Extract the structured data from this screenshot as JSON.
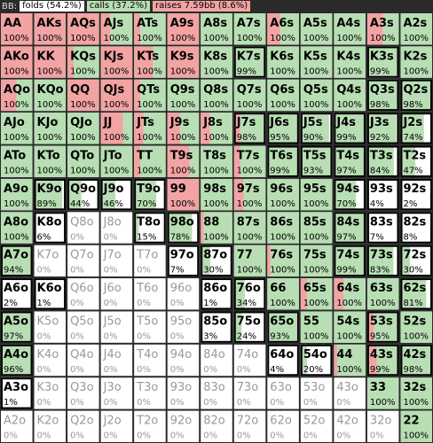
{
  "header": {
    "player": "BB:",
    "legend": [
      "folds (54.2%)",
      "calls (37.2%)",
      "raises 7.59bb (8.6%)"
    ]
  },
  "cells": [
    [
      [
        "AA",
        "100%",
        100,
        0
      ],
      [
        "AKs",
        "100%",
        100,
        0
      ],
      [
        "AQs",
        "100%",
        100,
        0
      ],
      [
        "AJs",
        "100%",
        30,
        70
      ],
      [
        "ATs",
        "100%",
        20,
        80
      ],
      [
        "A9s",
        "100%",
        100,
        0
      ],
      [
        "A8s",
        "100%",
        0,
        100
      ],
      [
        "A7s",
        "100%",
        0,
        100
      ],
      [
        "A6s",
        "100%",
        40,
        60
      ],
      [
        "A5s",
        "100%",
        0,
        100
      ],
      [
        "A4s",
        "100%",
        0,
        100
      ],
      [
        "A3s",
        "100%",
        50,
        50
      ],
      [
        "A2s",
        "100%",
        0,
        100
      ]
    ],
    [
      [
        "AKo",
        "100%",
        100,
        0
      ],
      [
        "KK",
        "100%",
        100,
        0
      ],
      [
        "KQs",
        "100%",
        20,
        80
      ],
      [
        "KJs",
        "100%",
        100,
        0
      ],
      [
        "KTs",
        "100%",
        60,
        40
      ],
      [
        "K9s",
        "100%",
        100,
        0
      ],
      [
        "K8s",
        "100%",
        0,
        100
      ],
      [
        "K7s",
        "99%",
        0,
        99
      ],
      [
        "K6s",
        "100%",
        0,
        100
      ],
      [
        "K5s",
        "100%",
        0,
        100
      ],
      [
        "K4s",
        "100%",
        0,
        100
      ],
      [
        "K3s",
        "99%",
        0,
        99
      ],
      [
        "K2s",
        "100%",
        0,
        100
      ]
    ],
    [
      [
        "AQo",
        "100%",
        50,
        50
      ],
      [
        "KQo",
        "100%",
        0,
        100
      ],
      [
        "QQ",
        "100%",
        100,
        0
      ],
      [
        "QJs",
        "100%",
        100,
        0
      ],
      [
        "QTs",
        "100%",
        20,
        80
      ],
      [
        "Q9s",
        "100%",
        0,
        100
      ],
      [
        "Q8s",
        "100%",
        0,
        100
      ],
      [
        "Q7s",
        "100%",
        0,
        100
      ],
      [
        "Q6s",
        "100%",
        0,
        100
      ],
      [
        "Q5s",
        "100%",
        0,
        100
      ],
      [
        "Q4s",
        "100%",
        0,
        100
      ],
      [
        "Q3s",
        "98%",
        0,
        98
      ],
      [
        "Q2s",
        "98%",
        0,
        98
      ]
    ],
    [
      [
        "AJo",
        "100%",
        0,
        100
      ],
      [
        "KJo",
        "100%",
        0,
        100
      ],
      [
        "QJo",
        "100%",
        0,
        100
      ],
      [
        "JJ",
        "100%",
        70,
        30
      ],
      [
        "JTs",
        "100%",
        30,
        70
      ],
      [
        "J9s",
        "100%",
        40,
        60
      ],
      [
        "J8s",
        "100%",
        30,
        70
      ],
      [
        "J7s",
        "98%",
        20,
        78
      ],
      [
        "J6s",
        "95%",
        0,
        95
      ],
      [
        "J5s",
        "90%",
        0,
        90
      ],
      [
        "J4s",
        "99%",
        0,
        99
      ],
      [
        "J3s",
        "92%",
        0,
        92
      ],
      [
        "J2s",
        "74%",
        0,
        74
      ]
    ],
    [
      [
        "ATo",
        "100%",
        0,
        100
      ],
      [
        "KTo",
        "100%",
        0,
        100
      ],
      [
        "QTo",
        "100%",
        0,
        100
      ],
      [
        "JTo",
        "100%",
        0,
        100
      ],
      [
        "TT",
        "100%",
        20,
        80
      ],
      [
        "T9s",
        "100%",
        70,
        30
      ],
      [
        "T8s",
        "100%",
        0,
        100
      ],
      [
        "T7s",
        "100%",
        20,
        80
      ],
      [
        "T6s",
        "99%",
        0,
        99
      ],
      [
        "T5s",
        "93%",
        0,
        93
      ],
      [
        "T4s",
        "97%",
        0,
        97
      ],
      [
        "T3s",
        "84%",
        0,
        84
      ],
      [
        "T2s",
        "47%",
        0,
        47
      ]
    ],
    [
      [
        "A9o",
        "100%",
        0,
        100
      ],
      [
        "K9o",
        "89%",
        0,
        89
      ],
      [
        "Q9o",
        "44%",
        0,
        44
      ],
      [
        "J9o",
        "46%",
        0,
        46
      ],
      [
        "T9o",
        "70%",
        0,
        70
      ],
      [
        "99",
        "100%",
        100,
        0
      ],
      [
        "98s",
        "100%",
        0,
        100
      ],
      [
        "97s",
        "100%",
        30,
        70
      ],
      [
        "96s",
        "100%",
        0,
        100
      ],
      [
        "95s",
        "100%",
        0,
        100
      ],
      [
        "94s",
        "70%",
        0,
        70
      ],
      [
        "93s",
        "4%",
        0,
        4
      ],
      [
        "92s",
        "2%",
        0,
        2
      ]
    ],
    [
      [
        "A8o",
        "100%",
        0,
        100
      ],
      [
        "K8o",
        "6%",
        0,
        6
      ],
      [
        "Q8o",
        "0%",
        0,
        0
      ],
      [
        "J8o",
        "0%",
        0,
        0
      ],
      [
        "T8o",
        "15%",
        0,
        15
      ],
      [
        "98o",
        "78%",
        0,
        78
      ],
      [
        "88",
        "100%",
        10,
        90
      ],
      [
        "87s",
        "100%",
        0,
        100
      ],
      [
        "86s",
        "100%",
        0,
        100
      ],
      [
        "85s",
        "100%",
        0,
        100
      ],
      [
        "84s",
        "97%",
        0,
        97
      ],
      [
        "83s",
        "7%",
        0,
        7
      ],
      [
        "82s",
        "8%",
        0,
        8
      ]
    ],
    [
      [
        "A7o",
        "94%",
        0,
        94
      ],
      [
        "K7o",
        "0%",
        0,
        0
      ],
      [
        "Q7o",
        "0%",
        0,
        0
      ],
      [
        "J7o",
        "0%",
        0,
        0
      ],
      [
        "T7o",
        "0%",
        0,
        0
      ],
      [
        "97o",
        "7%",
        0,
        7
      ],
      [
        "87o",
        "30%",
        0,
        30
      ],
      [
        "77",
        "100%",
        0,
        100
      ],
      [
        "76s",
        "100%",
        10,
        90
      ],
      [
        "75s",
        "100%",
        0,
        100
      ],
      [
        "74s",
        "99%",
        0,
        99
      ],
      [
        "73s",
        "83%",
        0,
        83
      ],
      [
        "72s",
        "30%",
        0,
        30
      ]
    ],
    [
      [
        "A6o",
        "2%",
        0,
        2
      ],
      [
        "K6o",
        "1%",
        0,
        1
      ],
      [
        "Q6o",
        "0%",
        0,
        0
      ],
      [
        "J6o",
        "0%",
        0,
        0
      ],
      [
        "T6o",
        "0%",
        0,
        0
      ],
      [
        "96o",
        "0%",
        0,
        0
      ],
      [
        "86o",
        "1%",
        0,
        1
      ],
      [
        "76o",
        "34%",
        0,
        34
      ],
      [
        "66",
        "100%",
        0,
        100
      ],
      [
        "65s",
        "100%",
        20,
        80
      ],
      [
        "64s",
        "100%",
        30,
        70
      ],
      [
        "63s",
        "100%",
        0,
        100
      ],
      [
        "62s",
        "81%",
        0,
        81
      ]
    ],
    [
      [
        "A5o",
        "97%",
        0,
        97
      ],
      [
        "K5o",
        "0%",
        0,
        0
      ],
      [
        "Q5o",
        "0%",
        0,
        0
      ],
      [
        "J5o",
        "0%",
        0,
        0
      ],
      [
        "T5o",
        "0%",
        0,
        0
      ],
      [
        "95o",
        "0%",
        0,
        0
      ],
      [
        "85o",
        "3%",
        0,
        3
      ],
      [
        "75o",
        "24%",
        0,
        24
      ],
      [
        "65o",
        "93%",
        0,
        93
      ],
      [
        "55",
        "100%",
        0,
        100
      ],
      [
        "54s",
        "100%",
        0,
        100
      ],
      [
        "53s",
        "95%",
        20,
        75
      ],
      [
        "52s",
        "100%",
        0,
        100
      ]
    ],
    [
      [
        "A4o",
        "96%",
        0,
        96
      ],
      [
        "K4o",
        "0%",
        0,
        0
      ],
      [
        "Q4o",
        "0%",
        0,
        0
      ],
      [
        "J4o",
        "0%",
        0,
        0
      ],
      [
        "T4o",
        "0%",
        0,
        0
      ],
      [
        "94o",
        "0%",
        0,
        0
      ],
      [
        "84o",
        "0%",
        0,
        0
      ],
      [
        "74o",
        "0%",
        0,
        0
      ],
      [
        "64o",
        "4%",
        0,
        4
      ],
      [
        "54o",
        "20%",
        0,
        20
      ],
      [
        "44",
        "100%",
        10,
        90
      ],
      [
        "43s",
        "99%",
        30,
        69
      ],
      [
        "42s",
        "98%",
        0,
        98
      ]
    ],
    [
      [
        "A3o",
        "1%",
        0,
        1
      ],
      [
        "K3o",
        "0%",
        0,
        0
      ],
      [
        "Q3o",
        "0%",
        0,
        0
      ],
      [
        "J3o",
        "0%",
        0,
        0
      ],
      [
        "T3o",
        "0%",
        0,
        0
      ],
      [
        "93o",
        "0%",
        0,
        0
      ],
      [
        "83o",
        "0%",
        0,
        0
      ],
      [
        "73o",
        "0%",
        0,
        0
      ],
      [
        "63o",
        "0%",
        0,
        0
      ],
      [
        "53o",
        "0%",
        0,
        0
      ],
      [
        "43o",
        "0%",
        0,
        0
      ],
      [
        "33",
        "100%",
        0,
        100
      ],
      [
        "32s",
        "100%",
        0,
        100
      ]
    ],
    [
      [
        "A2o",
        "0%",
        0,
        0
      ],
      [
        "K2o",
        "0%",
        0,
        0
      ],
      [
        "Q2o",
        "0%",
        0,
        0
      ],
      [
        "J2o",
        "0%",
        0,
        0
      ],
      [
        "T2o",
        "0%",
        0,
        0
      ],
      [
        "92o",
        "0%",
        0,
        0
      ],
      [
        "82o",
        "0%",
        0,
        0
      ],
      [
        "72o",
        "0%",
        0,
        0
      ],
      [
        "62o",
        "0%",
        0,
        0
      ],
      [
        "52o",
        "0%",
        0,
        0
      ],
      [
        "42o",
        "0%",
        0,
        0
      ],
      [
        "32o",
        "0%",
        0,
        0
      ],
      [
        "22",
        "100%",
        0,
        100
      ]
    ]
  ]
}
